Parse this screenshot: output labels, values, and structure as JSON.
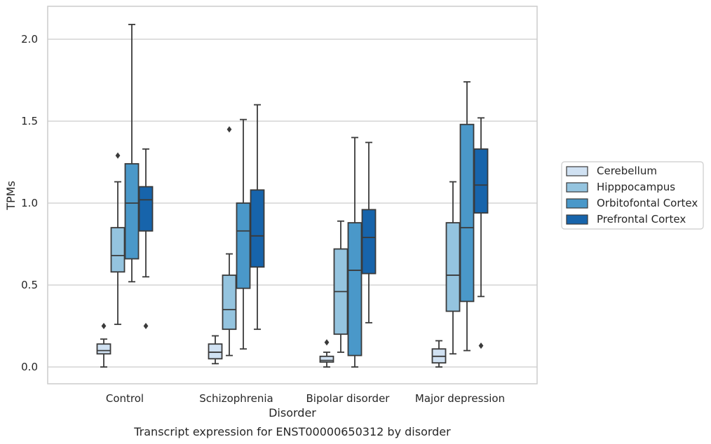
{
  "caption": "Transcript expression for ENST00000650312 by disorder",
  "chart_data": {
    "type": "box",
    "xlabel": "Disorder",
    "ylabel": "TPMs",
    "ylim": [
      -0.1,
      2.2
    ],
    "yticks": [
      0.0,
      0.5,
      1.0,
      1.5,
      2.0
    ],
    "ytick_labels": [
      "0.0",
      "0.5",
      "1.0",
      "1.5",
      "2.0"
    ],
    "grid": "horizontal",
    "legend_position": "right",
    "categories": [
      "Control",
      "Schizophrenia",
      "Bipolar disorder",
      "Major depression"
    ],
    "series": [
      {
        "name": "Cerebellum",
        "color": "#d0e1f2",
        "boxes": [
          {
            "whislo": 0.0,
            "q1": 0.08,
            "med": 0.1,
            "q3": 0.14,
            "whishi": 0.17,
            "fliers": [
              0.25
            ]
          },
          {
            "whislo": 0.02,
            "q1": 0.05,
            "med": 0.09,
            "q3": 0.14,
            "whishi": 0.19,
            "fliers": []
          },
          {
            "whislo": 0.0,
            "q1": 0.03,
            "med": 0.04,
            "q3": 0.065,
            "whishi": 0.09,
            "fliers": [
              0.15
            ]
          },
          {
            "whislo": 0.0,
            "q1": 0.025,
            "med": 0.065,
            "q3": 0.11,
            "whishi": 0.16,
            "fliers": []
          }
        ]
      },
      {
        "name": "Hipppocampus",
        "color": "#94c4df",
        "boxes": [
          {
            "whislo": 0.26,
            "q1": 0.58,
            "med": 0.68,
            "q3": 0.85,
            "whishi": 1.13,
            "fliers": [
              1.29
            ]
          },
          {
            "whislo": 0.07,
            "q1": 0.23,
            "med": 0.35,
            "q3": 0.56,
            "whishi": 0.69,
            "fliers": [
              1.45
            ]
          },
          {
            "whislo": 0.09,
            "q1": 0.2,
            "med": 0.46,
            "q3": 0.72,
            "whishi": 0.89,
            "fliers": []
          },
          {
            "whislo": 0.08,
            "q1": 0.34,
            "med": 0.56,
            "q3": 0.88,
            "whishi": 1.13,
            "fliers": []
          }
        ]
      },
      {
        "name": "Orbitofontal Cortex",
        "color": "#4a98c9",
        "boxes": [
          {
            "whislo": 0.52,
            "q1": 0.66,
            "med": 1.0,
            "q3": 1.24,
            "whishi": 2.09,
            "fliers": []
          },
          {
            "whislo": 0.11,
            "q1": 0.48,
            "med": 0.83,
            "q3": 1.0,
            "whishi": 1.51,
            "fliers": []
          },
          {
            "whislo": 0.0,
            "q1": 0.07,
            "med": 0.59,
            "q3": 0.88,
            "whishi": 1.4,
            "fliers": []
          },
          {
            "whislo": 0.1,
            "q1": 0.4,
            "med": 0.85,
            "q3": 1.48,
            "whishi": 1.74,
            "fliers": []
          }
        ]
      },
      {
        "name": "Prefrontal Cortex",
        "color": "#1764ab",
        "boxes": [
          {
            "whislo": 0.55,
            "q1": 0.83,
            "med": 1.02,
            "q3": 1.1,
            "whishi": 1.33,
            "fliers": [
              0.25
            ]
          },
          {
            "whislo": 0.23,
            "q1": 0.61,
            "med": 0.8,
            "q3": 1.08,
            "whishi": 1.6,
            "fliers": []
          },
          {
            "whislo": 0.27,
            "q1": 0.57,
            "med": 0.79,
            "q3": 0.96,
            "whishi": 1.37,
            "fliers": []
          },
          {
            "whislo": 0.43,
            "q1": 0.94,
            "med": 1.11,
            "q3": 1.33,
            "whishi": 1.52,
            "fliers": [
              0.13
            ]
          }
        ]
      }
    ]
  }
}
